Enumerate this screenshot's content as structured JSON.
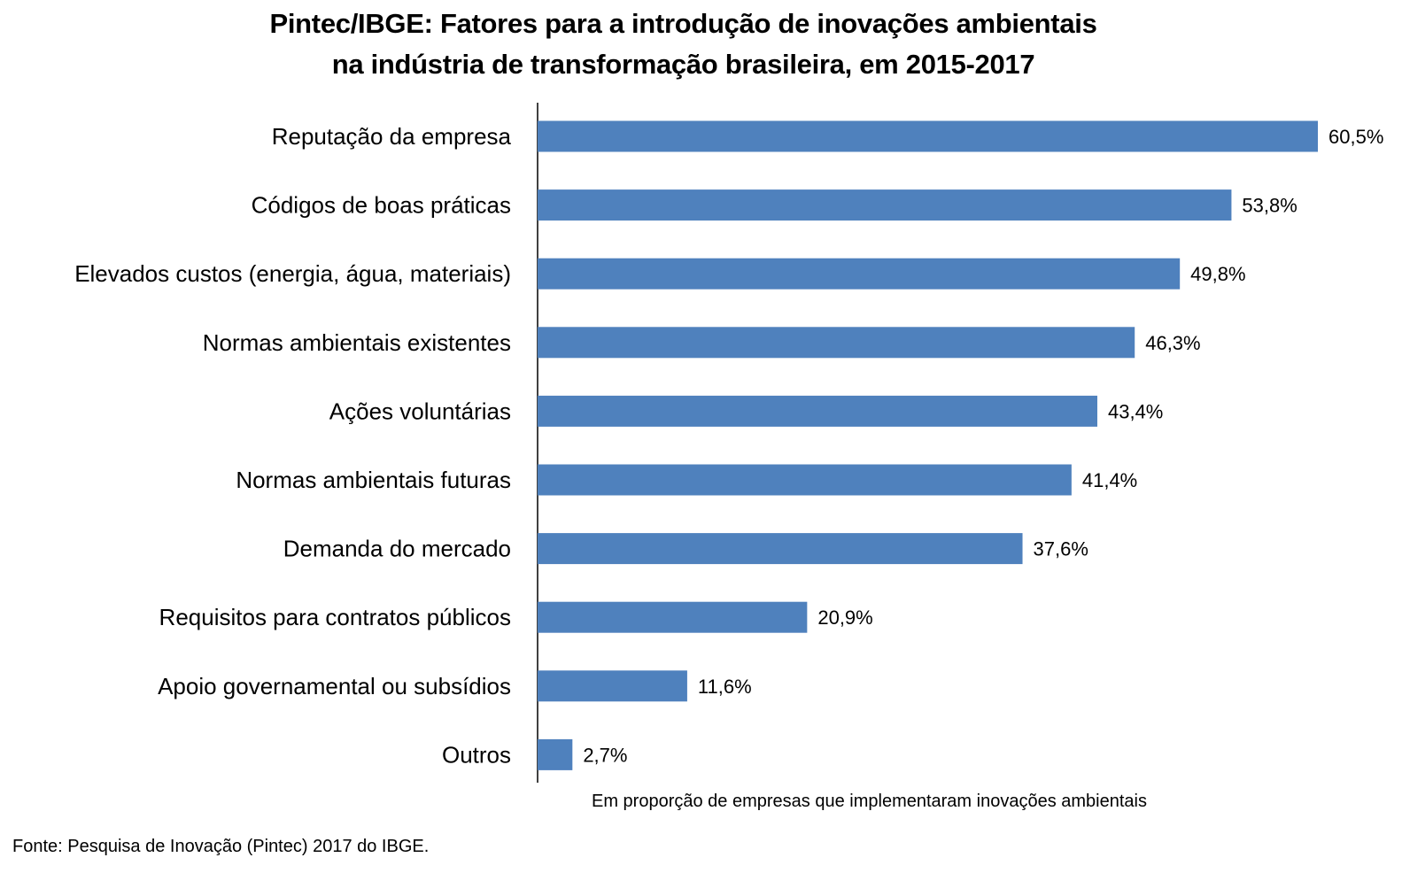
{
  "title_lines": [
    "Pintec/IBGE: Fatores para a introdução de inovações ambientais",
    "na indústria de transformação brasileira, em 2015-2017"
  ],
  "x_note": "Em proporção de empresas que implementaram inovações ambientais",
  "source": "Fonte: Pesquisa de Inovação (Pintec) 2017 do IBGE.",
  "chart_data": {
    "type": "bar",
    "orientation": "horizontal",
    "title": "Pintec/IBGE: Fatores para a introdução de inovações ambientais na indústria de transformação brasileira, em 2015-2017",
    "categories": [
      "Reputação da empresa",
      "Códigos de boas práticas",
      "Elevados custos (energia, água, materiais)",
      "Normas ambientais existentes",
      "Ações voluntárias",
      "Normas ambientais futuras",
      "Demanda do mercado",
      "Requisitos para contratos públicos",
      "Apoio governamental ou subsídios",
      "Outros"
    ],
    "values": [
      60.5,
      53.8,
      49.8,
      46.3,
      43.4,
      41.4,
      37.6,
      20.9,
      11.6,
      2.7
    ],
    "value_labels": [
      "60,5%",
      "53,8%",
      "49,8%",
      "46,3%",
      "43,4%",
      "41,4%",
      "37,6%",
      "20,9%",
      "11,6%",
      "2,7%"
    ],
    "xlabel": "Em proporção de empresas que implementaram inovações ambientais",
    "ylabel": "",
    "xlim": [
      0,
      60.5
    ],
    "grid": false,
    "legend": "none",
    "bar_color": "#4F81BD",
    "axis_color": "#000000"
  }
}
